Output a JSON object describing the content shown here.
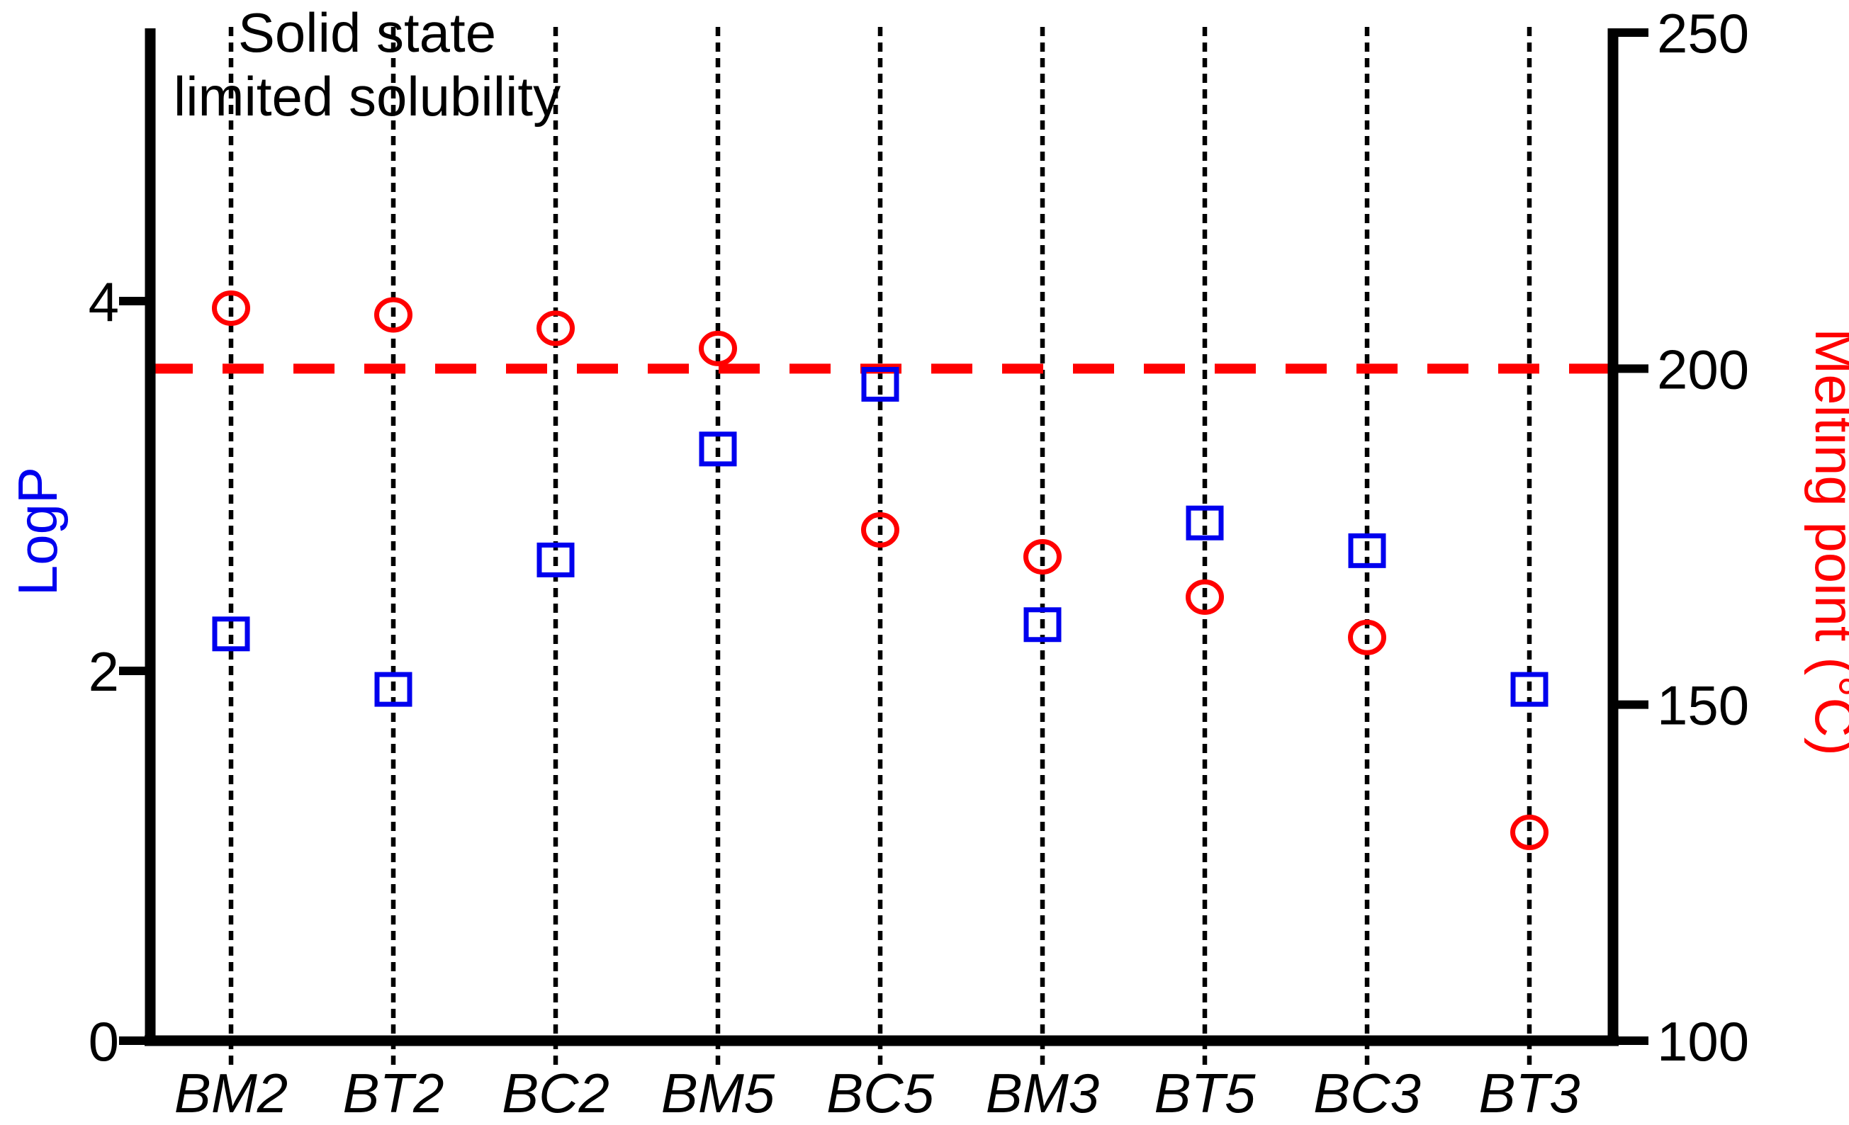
{
  "annotation": {
    "line1": "Solid state",
    "line2": "limited solubility"
  },
  "axes": {
    "left": {
      "title": "LogP",
      "color": "#0000ee",
      "tick_labels": [
        "0",
        "2",
        "4"
      ],
      "tick_values": [
        0,
        2,
        4
      ]
    },
    "right": {
      "title": "Melting point (°C)",
      "color": "#ff0000",
      "tick_labels": [
        "100",
        "150",
        "200",
        "250"
      ],
      "tick_values": [
        100,
        150,
        200,
        250
      ]
    }
  },
  "chart_data": {
    "type": "scatter",
    "subtype": "dual-axis-category-scatter",
    "categories": [
      "BM2",
      "BT2",
      "BC2",
      "BM5",
      "BC5",
      "BM3",
      "BT5",
      "BC3",
      "BT3"
    ],
    "series": [
      {
        "name": "LogP",
        "axis": "left",
        "marker": "open-square",
        "color": "#0000ee",
        "values": [
          2.2,
          1.9,
          2.6,
          3.2,
          3.55,
          2.25,
          2.8,
          2.65,
          1.9
        ]
      },
      {
        "name": "Melting point (°C)",
        "axis": "right",
        "marker": "open-circle",
        "color": "#ff0000",
        "values": [
          209,
          208,
          206,
          203,
          176,
          172,
          166,
          160,
          131
        ]
      }
    ],
    "threshold_line": {
      "axis": "right",
      "value": 200,
      "style": "dashed",
      "color": "#ff0000",
      "meaning": "Solid state limited solubility"
    },
    "left_axis_ticks": [
      0,
      2,
      4
    ],
    "right_axis_ticks": [
      100,
      150,
      200,
      250
    ],
    "left_ylim": [
      0,
      5.45
    ],
    "right_ylim": [
      100,
      250
    ],
    "grid": "vertical-dotted",
    "legend": "none",
    "title": ""
  }
}
